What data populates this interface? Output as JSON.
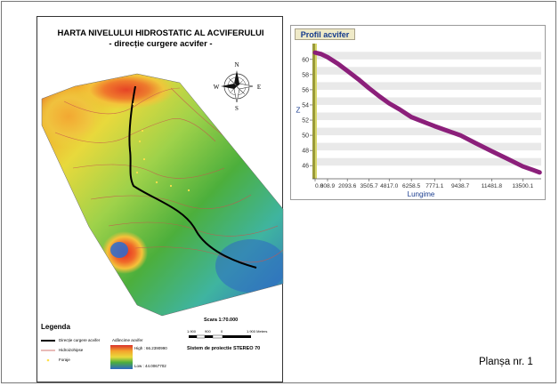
{
  "map": {
    "title_line1": "HARTA NIVELULUI HIDROSTATIC AL ACVIFERULUI",
    "title_line2": "- direcție curgere acvifer -",
    "compass": {
      "n": "N",
      "s": "S",
      "e": "E",
      "w": "W"
    }
  },
  "legend": {
    "title": "Legenda",
    "items": [
      {
        "label": "Direcție curgere acvifer"
      },
      {
        "label": "Hidroizohipse"
      },
      {
        "label": "Foraje"
      }
    ],
    "raster_title": "Adâncime acvifer",
    "raster_high": "High : 66.2390990",
    "raster_low": "Low : 44.0067702"
  },
  "scale": {
    "title": "Scara 1:70.000",
    "ticks": [
      "1.900",
      "900",
      "0",
      "1.900 Meters"
    ],
    "projection": "Sistem de proiectie STEREO 70"
  },
  "profile": {
    "tab_label": "Profil acvifer"
  },
  "chart_data": {
    "type": "line",
    "title": "Profil acvifer",
    "xlabel": "Lungime",
    "ylabel": "Z",
    "x_tick_labels": [
      "0.0",
      "808.9",
      "2093.6",
      "3505.7",
      "4817.0",
      "6258.5",
      "7771.1",
      "9438.7",
      "11481.8",
      "13500.1"
    ],
    "y_tick_labels": [
      "46",
      "48",
      "50",
      "52",
      "54",
      "56",
      "58",
      "60"
    ],
    "ylim": [
      44.5,
      61.5
    ],
    "xlim": [
      0,
      14700
    ],
    "grid": true,
    "series": [
      {
        "color": "#8b1f7a",
        "x": [
          0,
          400,
          808.9,
          1500,
          2093.6,
          2800,
          3505.7,
          4200,
          4817.0,
          5500,
          6258.5,
          7000,
          7771.1,
          8600,
          9438.7,
          10400,
          11481.8,
          12500,
          13500.1,
          14200,
          14600
        ],
        "y": [
          60.9,
          60.7,
          60.3,
          59.4,
          58.5,
          57.4,
          56.2,
          55.1,
          54.2,
          53.4,
          52.4,
          51.8,
          51.2,
          50.6,
          50.0,
          49.0,
          47.9,
          46.9,
          45.9,
          45.4,
          45.1
        ]
      }
    ]
  },
  "plate": {
    "label": "Planșa nr. 1"
  },
  "colors": {
    "flow_line": "#000000",
    "contours": "#c8554f",
    "wells": "#ffe04a",
    "profile_line": "#8b1f7a",
    "tab_bg": "#efeac8",
    "tab_text": "#143a8c"
  }
}
